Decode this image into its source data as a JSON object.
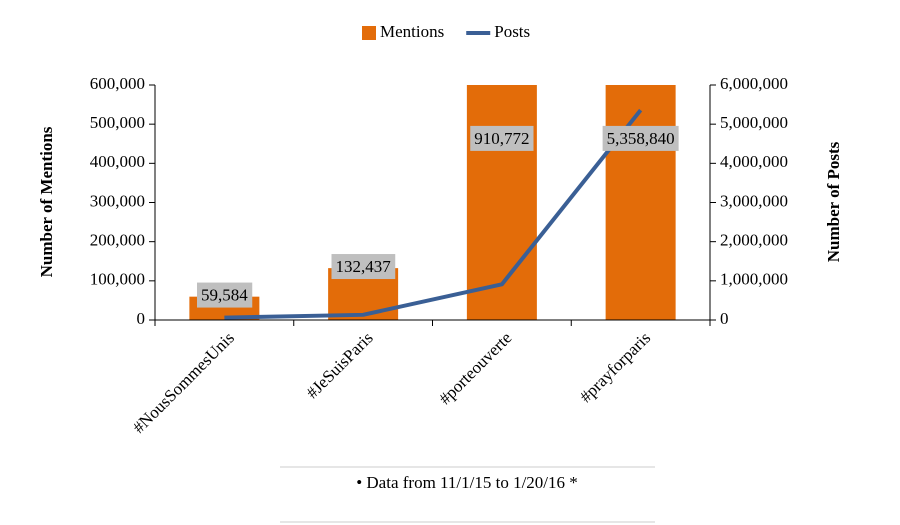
{
  "chart_data": {
    "type": "bar_line",
    "categories": [
      "#NousSommesUnis",
      "#JeSuisParis",
      "#porteouverte",
      "#prayforparis"
    ],
    "series": [
      {
        "name": "Mentions",
        "type": "bar",
        "color": "#e36c09",
        "values": [
          59584,
          132437,
          910772,
          5358840
        ],
        "value_labels": [
          "59,584",
          "132,437",
          "910,772",
          "5,358,840"
        ]
      },
      {
        "name": "Posts",
        "type": "line",
        "axis": "y2",
        "color": "#3a5f95",
        "values": [
          59584,
          132437,
          910772,
          5358840
        ]
      }
    ],
    "ylabel": "Number of Mentions",
    "y2label": "Number of Posts",
    "ylim": [
      0,
      600000
    ],
    "yticks": [
      0,
      {
        "value": 100000,
        "label": "100,000"
      },
      {
        "value": 200000,
        "label": "200,000"
      },
      {
        "value": 300000,
        "label": "300,000"
      },
      {
        "value": 400000,
        "label": "400,000"
      },
      {
        "value": 500000,
        "label": "500,000"
      },
      {
        "value": 600000,
        "label": "600,000"
      }
    ],
    "y2lim": [
      0,
      6000000
    ],
    "y2ticks": [
      0,
      {
        "value": 1000000,
        "label": "1,000,000"
      },
      {
        "value": 2000000,
        "label": "2,000,000"
      },
      {
        "value": 3000000,
        "label": "3,000,000"
      },
      {
        "value": 4000000,
        "label": "4,000,000"
      },
      {
        "value": 5000000,
        "label": "5,000,000"
      },
      {
        "value": 6000000,
        "label": "6,000,000"
      }
    ],
    "legend": "top",
    "footnote": "• Data from 11/1/15 to 1/20/16 *"
  }
}
